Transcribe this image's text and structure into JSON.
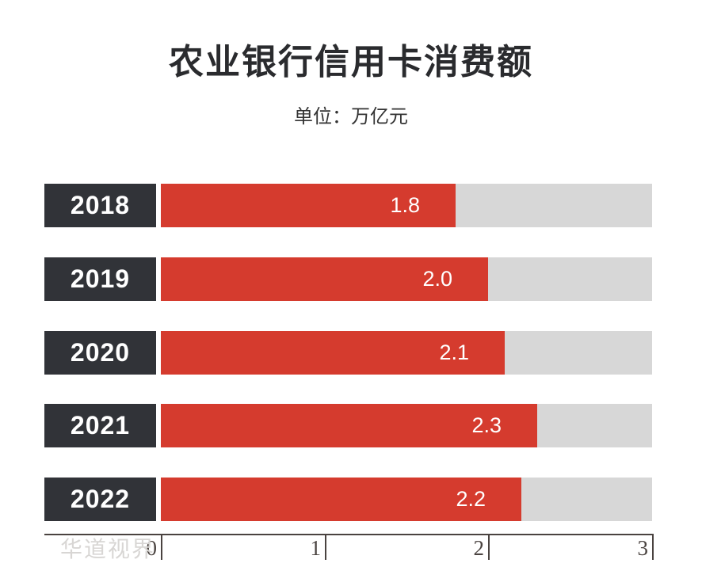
{
  "header": {
    "title": "农业银行信用卡消费额",
    "subtitle": "单位：万亿元"
  },
  "watermark": "华道视界",
  "chart_data": {
    "type": "bar",
    "orientation": "horizontal",
    "title": "农业银行信用卡消费额",
    "unit_label": "单位：万亿元",
    "categories": [
      "2018",
      "2019",
      "2020",
      "2021",
      "2022"
    ],
    "values": [
      1.8,
      2.0,
      2.1,
      2.3,
      2.2
    ],
    "value_labels": [
      "1.8",
      "2.0",
      "2.1",
      "2.3",
      "2.2"
    ],
    "xlim": [
      0,
      3
    ],
    "x_ticks": [
      0,
      1,
      2,
      3
    ],
    "grid": false,
    "legend": false,
    "colors": {
      "bar": "#d53b2e",
      "track": "#d7d7d7",
      "category_box": "#313338",
      "category_text": "#ffffff",
      "value_text": "#ffffff",
      "axis": "#4a4340",
      "title_text": "#2a2b2e",
      "subtitle_text": "#333333",
      "watermark_text": "#d8d6d4",
      "background": "#ffffff"
    }
  }
}
